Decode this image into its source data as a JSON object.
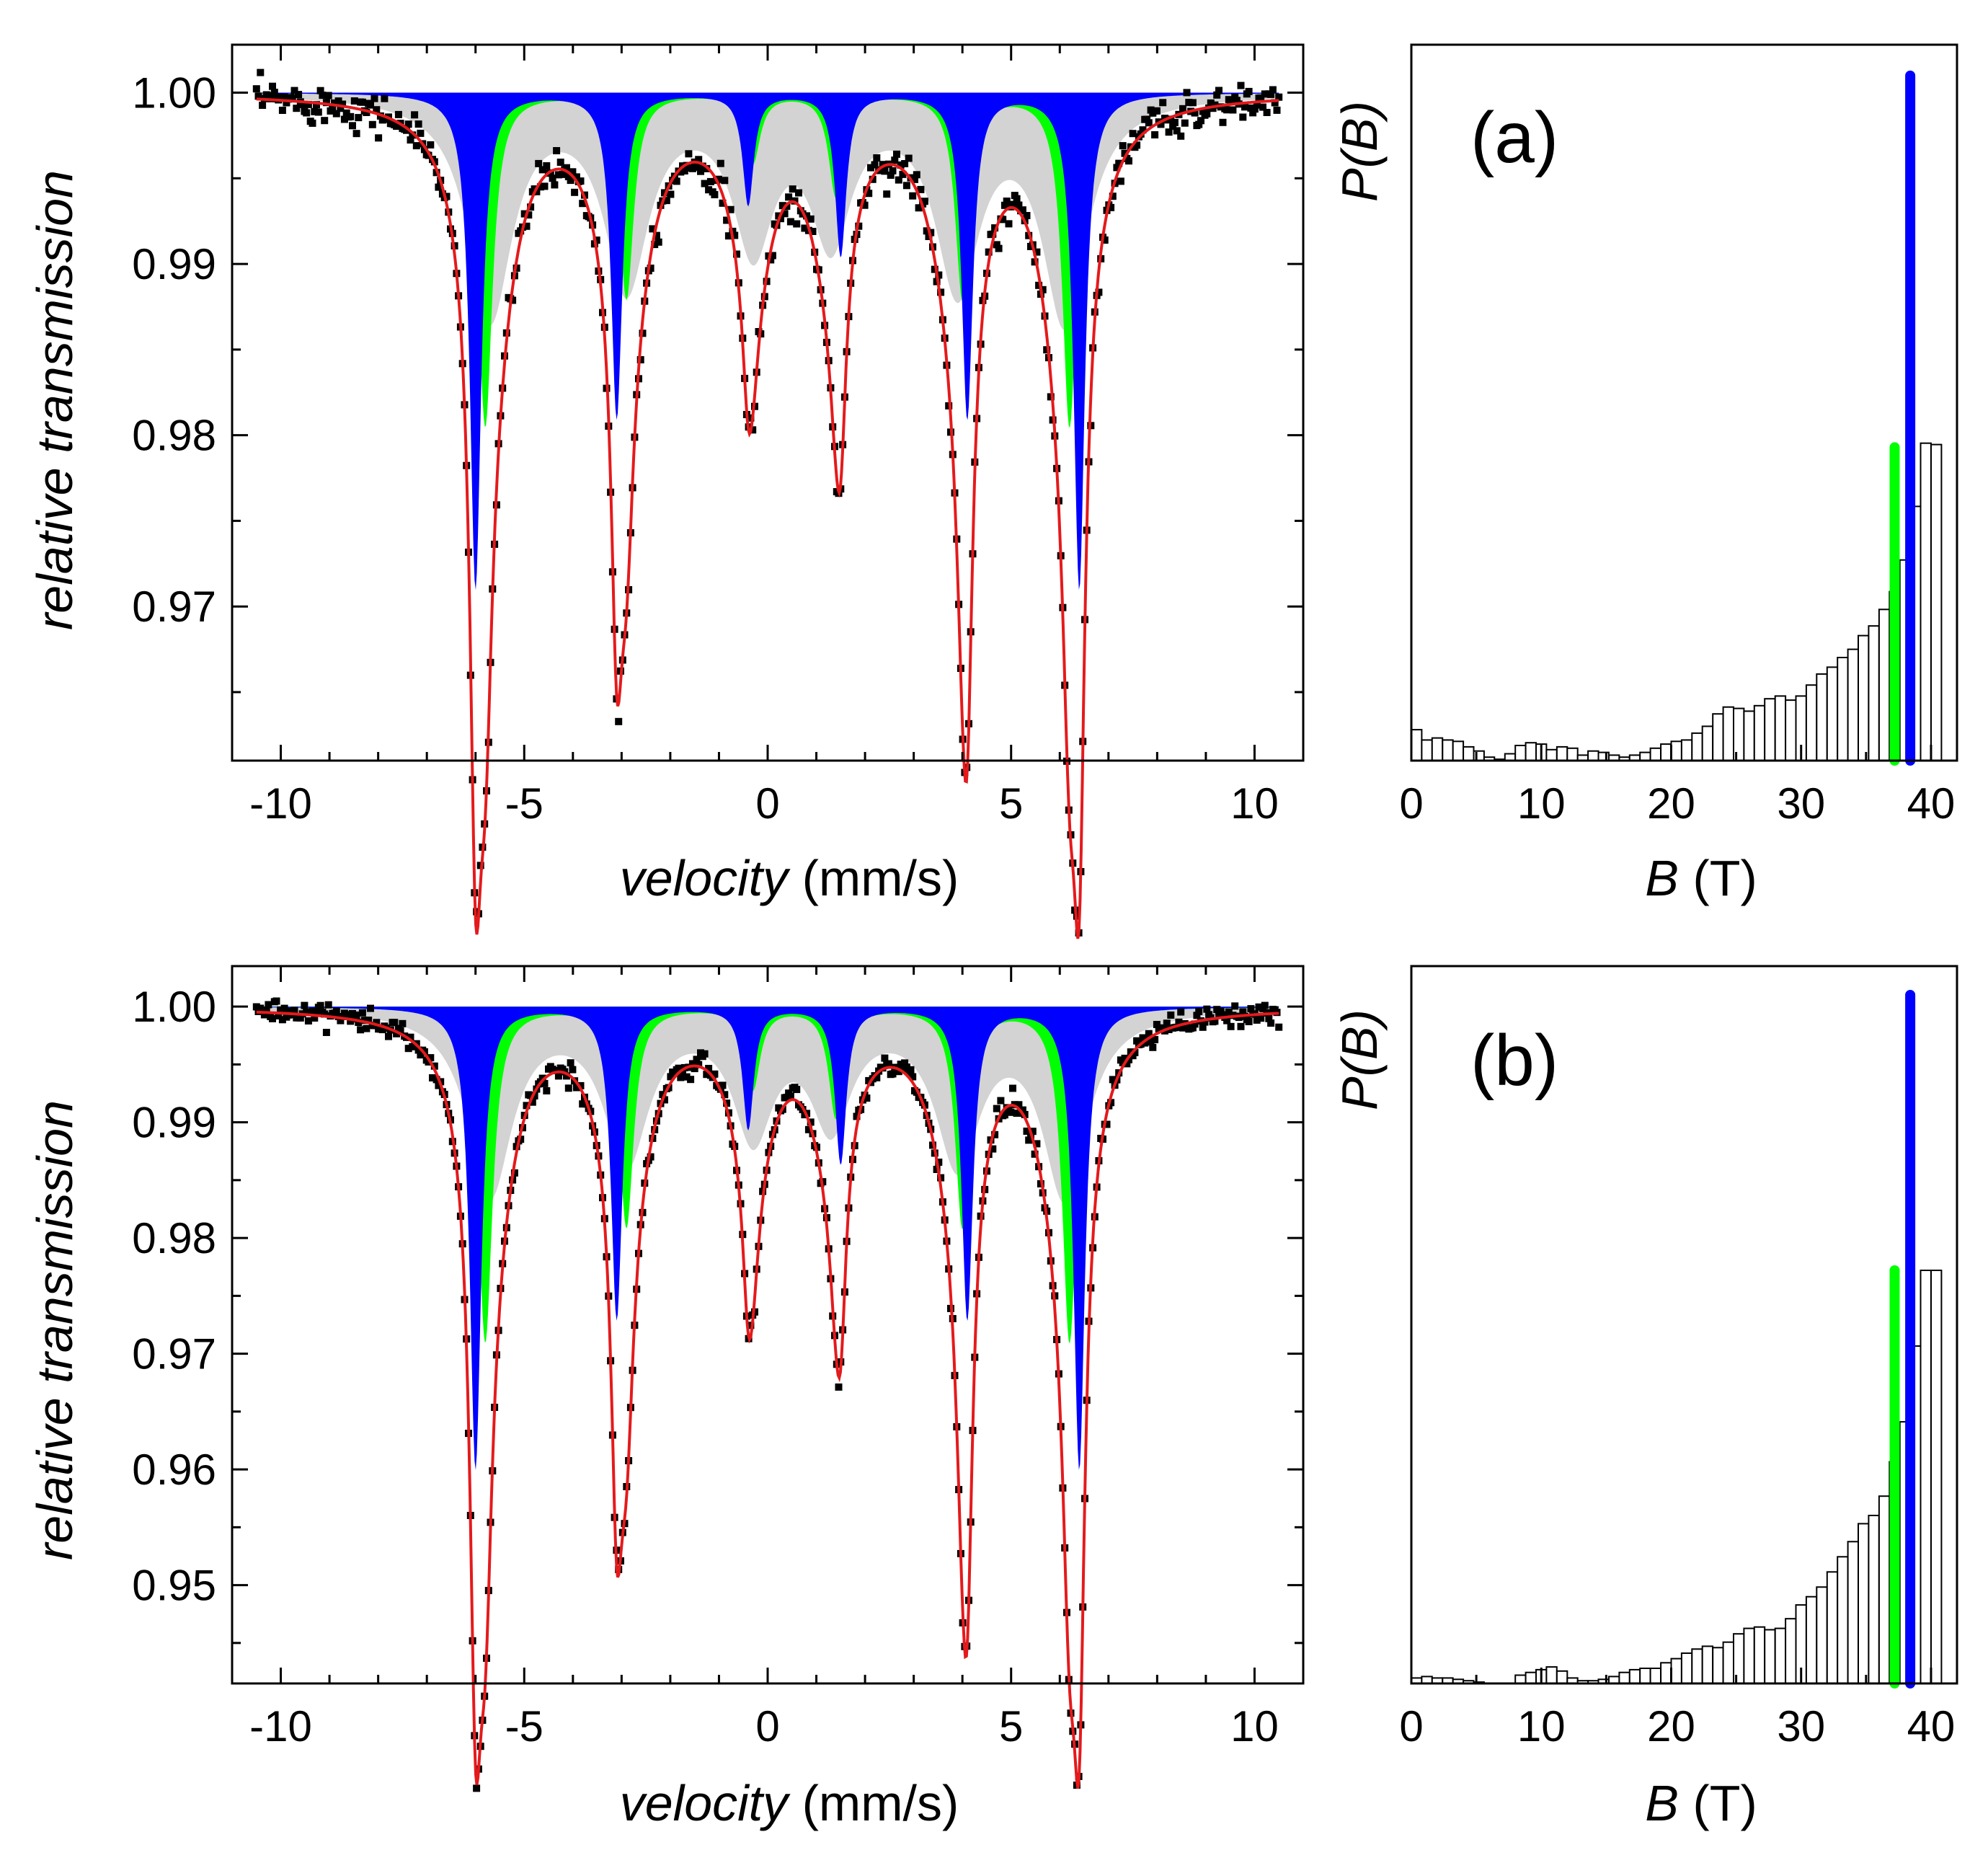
{
  "colors": {
    "fit": "#e41a1c",
    "site_1": "#0000ff",
    "site_2": "#00ff00",
    "distribution": "#d3d3d3",
    "data_points": "#000000"
  },
  "chart_data": [
    {
      "id": "a-spectrum",
      "type": "line",
      "xlabel": {
        "italic": "velocity",
        "rest": " (mm/s)"
      },
      "ylabel": "relative transmission",
      "xlim": [
        -11,
        11
      ],
      "ylim": [
        0.961,
        1.0028
      ],
      "x_ticks": [
        -10,
        -5,
        0,
        5,
        10
      ],
      "y_ticks": [
        0.97,
        0.98,
        0.99,
        1.0
      ],
      "x_tick_labels": [
        "-10",
        "-5",
        "0",
        "5",
        "10"
      ],
      "y_tick_labels": [
        "0.97",
        "0.98",
        "0.99",
        "1.00"
      ],
      "series": [
        {
          "kind": "blue_sextet",
          "lines": [
            {
              "pos": -6.0,
              "depth": 0.029,
              "hwhm": 0.14
            },
            {
              "pos": -3.1,
              "depth": 0.019,
              "hwhm": 0.14
            },
            {
              "pos": -0.4,
              "depth": 0.0065,
              "hwhm": 0.14
            },
            {
              "pos": 1.5,
              "depth": 0.0095,
              "hwhm": 0.14
            },
            {
              "pos": 4.1,
              "depth": 0.019,
              "hwhm": 0.14
            },
            {
              "pos": 6.4,
              "depth": 0.029,
              "hwhm": 0.14
            }
          ]
        },
        {
          "kind": "green_sextet",
          "lines": [
            {
              "pos": -5.8,
              "depth": 0.0195,
              "hwhm": 0.18
            },
            {
              "pos": -2.9,
              "depth": 0.012,
              "hwhm": 0.18
            },
            {
              "pos": -0.3,
              "depth": 0.004,
              "hwhm": 0.18
            },
            {
              "pos": 1.4,
              "depth": 0.006,
              "hwhm": 0.18
            },
            {
              "pos": 4.0,
              "depth": 0.012,
              "hwhm": 0.18
            },
            {
              "pos": 6.2,
              "depth": 0.0195,
              "hwhm": 0.18
            }
          ]
        },
        {
          "kind": "distribution_gray",
          "lines": [
            {
              "pos": -5.7,
              "depth": 0.013,
              "hwhm": 0.55
            },
            {
              "pos": -2.9,
              "depth": 0.011,
              "hwhm": 0.55
            },
            {
              "pos": -0.3,
              "depth": 0.0085,
              "hwhm": 0.5
            },
            {
              "pos": 1.3,
              "depth": 0.008,
              "hwhm": 0.5
            },
            {
              "pos": 3.9,
              "depth": 0.011,
              "hwhm": 0.55
            },
            {
              "pos": 6.1,
              "depth": 0.013,
              "hwhm": 0.55
            }
          ]
        }
      ],
      "noise": 0.00055
    },
    {
      "id": "a-histogram",
      "type": "bar",
      "panel_label": "(a)",
      "xlabel": {
        "italic": "B",
        "rest": "  (T)"
      },
      "ylabel": "P(B)",
      "xlim": [
        0,
        42
      ],
      "ylim": [
        0,
        1.0
      ],
      "x_ticks": [
        0,
        10,
        20,
        30,
        40
      ],
      "x_tick_labels": [
        "0",
        "10",
        "20",
        "30",
        "40"
      ],
      "bin_width": 0.8,
      "bin_start": 0,
      "values": [
        0.045,
        0.03,
        0.033,
        0.03,
        0.028,
        0.02,
        0.014,
        0.005,
        0.002,
        0.01,
        0.022,
        0.026,
        0.024,
        0.016,
        0.02,
        0.018,
        0.008,
        0.014,
        0.012,
        0.008,
        0.005,
        0.008,
        0.012,
        0.018,
        0.024,
        0.028,
        0.03,
        0.04,
        0.05,
        0.068,
        0.078,
        0.076,
        0.072,
        0.08,
        0.09,
        0.094,
        0.088,
        0.094,
        0.11,
        0.126,
        0.136,
        0.15,
        0.162,
        0.182,
        0.196,
        0.22,
        0.246,
        0.292,
        0.37,
        0.462,
        0.46
      ],
      "green_line": {
        "x": 37.2,
        "height": 0.456
      },
      "blue_line": {
        "x": 38.4,
        "height": 0.997
      }
    },
    {
      "id": "b-spectrum",
      "type": "line",
      "xlabel": {
        "italic": "velocity",
        "rest": " (mm/s)"
      },
      "ylabel": "relative transmission",
      "xlim": [
        -11,
        11
      ],
      "ylim": [
        0.9415,
        1.0035
      ],
      "x_ticks": [
        -10,
        -5,
        0,
        5,
        10
      ],
      "y_ticks": [
        0.95,
        0.96,
        0.97,
        0.98,
        0.99,
        1.0
      ],
      "x_tick_labels": [
        "-10",
        "-5",
        "0",
        "5",
        "10"
      ],
      "y_tick_labels": [
        "0.95",
        "0.96",
        "0.97",
        "0.98",
        "0.99",
        "1.00"
      ],
      "series": [
        {
          "kind": "blue_sextet",
          "lines": [
            {
              "pos": -6.0,
              "depth": 0.04,
              "hwhm": 0.14
            },
            {
              "pos": -3.1,
              "depth": 0.027,
              "hwhm": 0.14
            },
            {
              "pos": -0.4,
              "depth": 0.0105,
              "hwhm": 0.14
            },
            {
              "pos": 1.5,
              "depth": 0.0135,
              "hwhm": 0.14
            },
            {
              "pos": 4.1,
              "depth": 0.027,
              "hwhm": 0.14
            },
            {
              "pos": 6.4,
              "depth": 0.04,
              "hwhm": 0.14
            }
          ]
        },
        {
          "kind": "green_sextet",
          "lines": [
            {
              "pos": -5.8,
              "depth": 0.029,
              "hwhm": 0.18
            },
            {
              "pos": -2.9,
              "depth": 0.019,
              "hwhm": 0.18
            },
            {
              "pos": -0.3,
              "depth": 0.007,
              "hwhm": 0.18
            },
            {
              "pos": 1.4,
              "depth": 0.0095,
              "hwhm": 0.18
            },
            {
              "pos": 4.0,
              "depth": 0.019,
              "hwhm": 0.18
            },
            {
              "pos": 6.2,
              "depth": 0.029,
              "hwhm": 0.18
            }
          ]
        },
        {
          "kind": "distribution_gray",
          "lines": [
            {
              "pos": -5.7,
              "depth": 0.016,
              "hwhm": 0.55
            },
            {
              "pos": -2.9,
              "depth": 0.013,
              "hwhm": 0.55
            },
            {
              "pos": -0.3,
              "depth": 0.0105,
              "hwhm": 0.5
            },
            {
              "pos": 1.3,
              "depth": 0.0095,
              "hwhm": 0.5
            },
            {
              "pos": 3.9,
              "depth": 0.013,
              "hwhm": 0.55
            },
            {
              "pos": 6.1,
              "depth": 0.016,
              "hwhm": 0.55
            }
          ]
        }
      ],
      "noise": 0.0005
    },
    {
      "id": "b-histogram",
      "type": "bar",
      "panel_label": "(b)",
      "xlabel": {
        "italic": "B",
        "rest": "  (T)"
      },
      "ylabel": "P(B)",
      "xlim": [
        0,
        42
      ],
      "ylim": [
        0,
        1.0
      ],
      "x_ticks": [
        0,
        10,
        20,
        30,
        40
      ],
      "x_tick_labels": [
        "0",
        "10",
        "20",
        "30",
        "40"
      ],
      "bin_width": 0.8,
      "bin_start": 0,
      "values": [
        0.008,
        0.01,
        0.008,
        0.008,
        0.006,
        0.004,
        0.002,
        0.0,
        0.0,
        0.0,
        0.012,
        0.016,
        0.02,
        0.024,
        0.018,
        0.008,
        0.004,
        0.004,
        0.006,
        0.01,
        0.016,
        0.02,
        0.022,
        0.022,
        0.03,
        0.036,
        0.044,
        0.05,
        0.054,
        0.052,
        0.06,
        0.072,
        0.08,
        0.082,
        0.078,
        0.08,
        0.094,
        0.114,
        0.126,
        0.14,
        0.162,
        0.184,
        0.206,
        0.232,
        0.244,
        0.272,
        0.322,
        0.38,
        0.49,
        0.6,
        0.6
      ],
      "green_line": {
        "x": 37.2,
        "height": 0.6
      },
      "blue_line": {
        "x": 38.4,
        "height": 1.0
      }
    }
  ]
}
